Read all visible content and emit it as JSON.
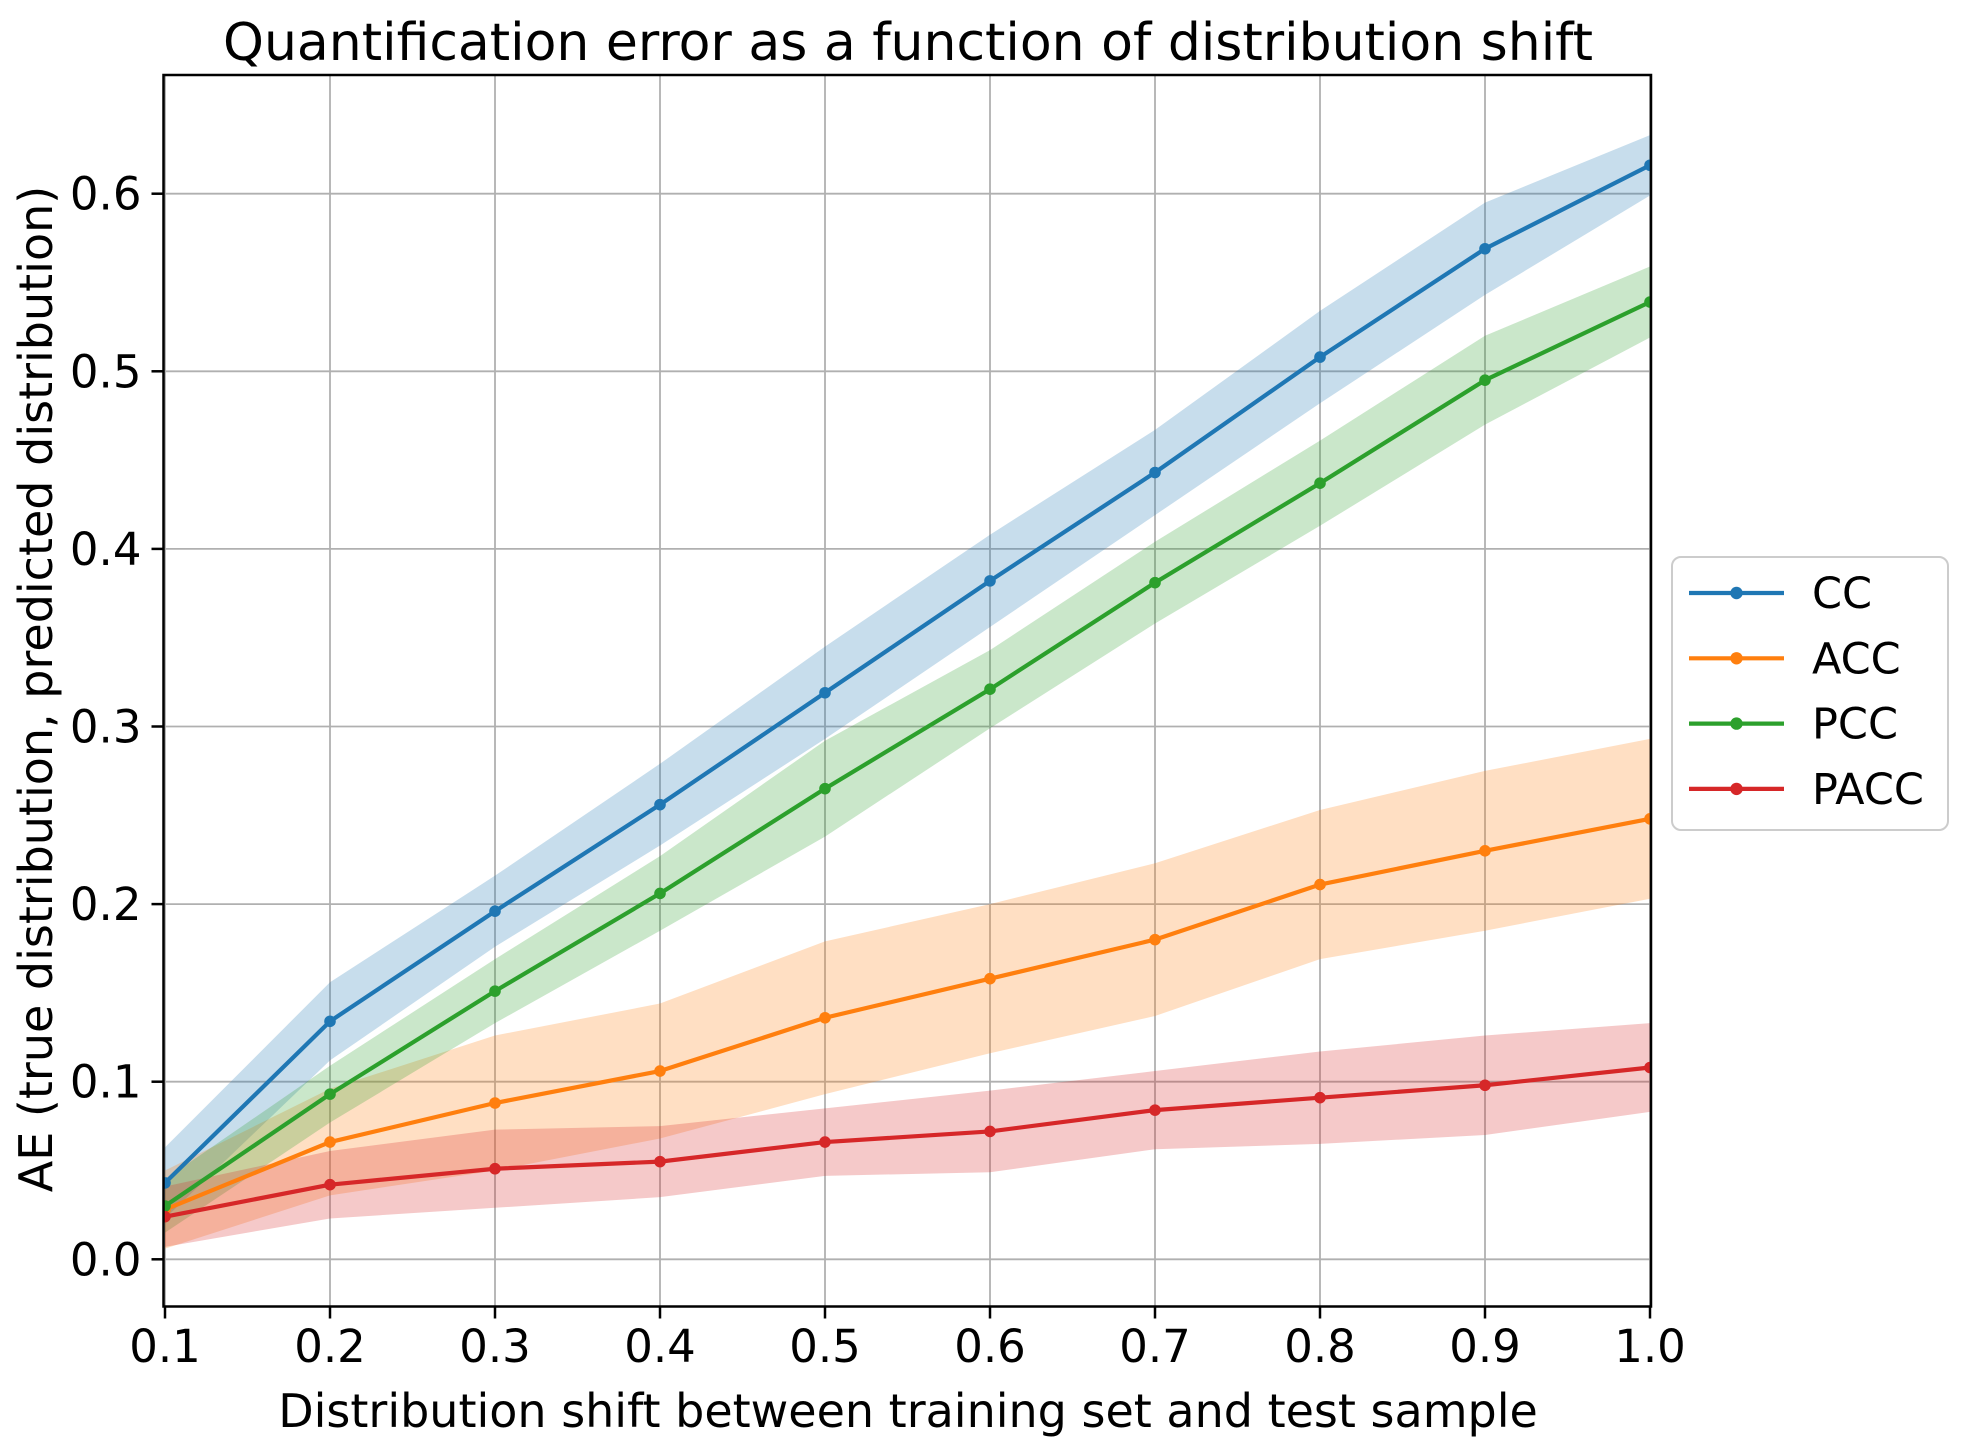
{
  "chart_data": {
    "type": "line",
    "title": "Quantification error as a function of distribution shift",
    "xlabel": "Distribution shift between training set and test sample",
    "ylabel": "AE (true distribution, predicted distribution)",
    "x": [
      0.1,
      0.2,
      0.3,
      0.4,
      0.5,
      0.6,
      0.7,
      0.8,
      0.9,
      1.0
    ],
    "x_tick_labels": [
      "0.1",
      "0.2",
      "0.3",
      "0.4",
      "0.5",
      "0.6",
      "0.7",
      "0.8",
      "0.9",
      "1.0"
    ],
    "y_ticks": [
      0.0,
      0.1,
      0.2,
      0.3,
      0.4,
      0.5,
      0.6
    ],
    "y_tick_labels": [
      "0.0",
      "0.1",
      "0.2",
      "0.3",
      "0.4",
      "0.5",
      "0.6"
    ],
    "xlim": [
      0.1,
      1.0
    ],
    "ylim": [
      -0.027,
      0.667
    ],
    "grid": true,
    "grid_color": "#b0b0b0",
    "spine_color": "#000000",
    "background": "#ffffff",
    "band_alpha": 0.25,
    "legend_position": "outside-right",
    "series": [
      {
        "name": "CC",
        "color": "#1f77b4",
        "values": [
          0.043,
          0.134,
          0.196,
          0.256,
          0.319,
          0.382,
          0.443,
          0.508,
          0.569,
          0.616
        ],
        "band_halfwidth": [
          0.02,
          0.022,
          0.02,
          0.023,
          0.026,
          0.026,
          0.024,
          0.026,
          0.026,
          0.017
        ]
      },
      {
        "name": "ACC",
        "color": "#ff7f0e",
        "values": [
          0.028,
          0.066,
          0.088,
          0.106,
          0.136,
          0.158,
          0.18,
          0.211,
          0.23,
          0.248
        ],
        "band_halfwidth": [
          0.022,
          0.03,
          0.038,
          0.038,
          0.043,
          0.042,
          0.043,
          0.042,
          0.045,
          0.045
        ]
      },
      {
        "name": "PCC",
        "color": "#2ca02c",
        "values": [
          0.03,
          0.093,
          0.151,
          0.206,
          0.265,
          0.321,
          0.381,
          0.437,
          0.495,
          0.539
        ],
        "band_halfwidth": [
          0.015,
          0.016,
          0.018,
          0.021,
          0.027,
          0.022,
          0.023,
          0.024,
          0.025,
          0.02
        ]
      },
      {
        "name": "PACC",
        "color": "#d62728",
        "values": [
          0.024,
          0.042,
          0.051,
          0.055,
          0.066,
          0.072,
          0.084,
          0.091,
          0.098,
          0.108
        ],
        "band_halfwidth": [
          0.017,
          0.019,
          0.022,
          0.02,
          0.019,
          0.023,
          0.022,
          0.026,
          0.028,
          0.025
        ]
      }
    ]
  }
}
